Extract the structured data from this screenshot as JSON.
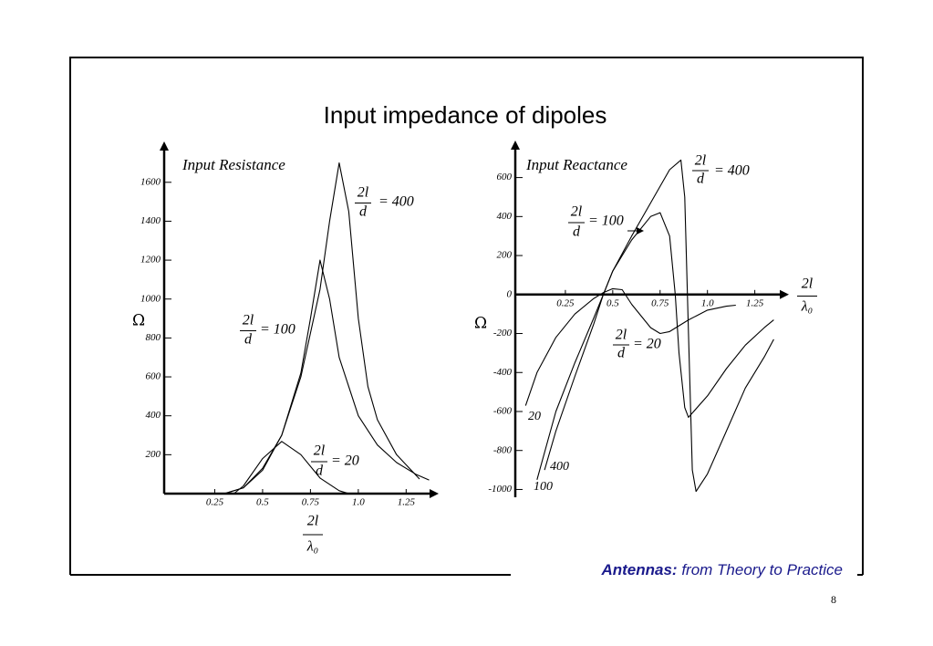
{
  "slide": {
    "title": "Input impedance of dipoles",
    "footer_bold": "Antennas:",
    "footer_italic": "from Theory to Practice",
    "page_number": "8"
  },
  "chart_data": [
    {
      "type": "line",
      "title": "Input Resistance",
      "y_label": "Ω",
      "x_label_top": "2l",
      "x_label_bottom": "λ₀",
      "ratio_top": "2l",
      "ratio_bottom": "d",
      "color": "#000000",
      "xlim": [
        0,
        1.42
      ],
      "ylim": [
        0,
        1810
      ],
      "xticks": [
        0.25,
        0.5,
        0.75,
        {
          "value": 1,
          "label": "1.0"
        },
        1.25
      ],
      "yticks": [
        200,
        400,
        600,
        800,
        1000,
        1200,
        1400,
        1600
      ],
      "series": [
        {
          "name": "= 400",
          "x": [
            0.3,
            0.4,
            0.5,
            0.6,
            0.7,
            0.8,
            0.85,
            0.9,
            0.95,
            1.0,
            1.05,
            1.1,
            1.2,
            1.32
          ],
          "values": [
            0,
            30,
            120,
            300,
            600,
            1050,
            1400,
            1700,
            1450,
            900,
            550,
            380,
            200,
            75
          ]
        },
        {
          "name": "= 100",
          "x": [
            0.3,
            0.4,
            0.5,
            0.6,
            0.7,
            0.75,
            0.8,
            0.85,
            0.9,
            1.0,
            1.1,
            1.2,
            1.3,
            1.37
          ],
          "values": [
            0,
            30,
            130,
            300,
            620,
            900,
            1200,
            1000,
            700,
            400,
            250,
            160,
            100,
            70
          ]
        },
        {
          "name": "= 20",
          "x": [
            0.35,
            0.4,
            0.5,
            0.6,
            0.7,
            0.8,
            0.9,
            0.95
          ],
          "values": [
            0,
            40,
            180,
            268,
            200,
            80,
            15,
            0
          ]
        }
      ]
    },
    {
      "type": "line",
      "title": "Input Reactance",
      "y_label": "Ω",
      "x_label_top": "2l",
      "x_label_bottom": "λ₀",
      "ratio_top": "2l",
      "ratio_bottom": "d",
      "color": "#000000",
      "xlim": [
        0,
        1.43
      ],
      "ylim": [
        -1040,
        790
      ],
      "xticks": [
        0.25,
        0.5,
        0.75,
        {
          "value": 1,
          "label": "1.0"
        },
        1.25
      ],
      "yticks": [
        -1000,
        -800,
        -600,
        -400,
        -200,
        0,
        200,
        400,
        600
      ],
      "series": [
        {
          "name": "= 400",
          "end_label": "400",
          "x": [
            0.14,
            0.2,
            0.3,
            0.4,
            0.45,
            0.5,
            0.6,
            0.7,
            0.8,
            0.86,
            0.88,
            0.9,
            0.92,
            0.94,
            1.0,
            1.1,
            1.2,
            1.3,
            1.35
          ],
          "values": [
            -900,
            -700,
            -420,
            -150,
            0,
            120,
            300,
            470,
            640,
            690,
            500,
            -200,
            -900,
            -1010,
            -920,
            -700,
            -480,
            -320,
            -230
          ]
        },
        {
          "name": "= 100",
          "end_label": "100",
          "x": [
            0.1,
            0.2,
            0.3,
            0.4,
            0.45,
            0.5,
            0.6,
            0.7,
            0.75,
            0.8,
            0.83,
            0.85,
            0.88,
            0.9,
            1.0,
            1.1,
            1.2,
            1.3,
            1.35
          ],
          "values": [
            -950,
            -600,
            -350,
            -120,
            0,
            120,
            280,
            400,
            420,
            300,
            0,
            -300,
            -580,
            -630,
            -520,
            -380,
            -260,
            -170,
            -130
          ]
        },
        {
          "name": "= 20",
          "end_label": "20",
          "x": [
            0.04,
            0.1,
            0.2,
            0.3,
            0.4,
            0.45,
            0.5,
            0.55,
            0.6,
            0.7,
            0.75,
            0.8,
            0.9,
            1.0,
            1.1,
            1.15
          ],
          "values": [
            -570,
            -400,
            -220,
            -100,
            -20,
            10,
            30,
            25,
            -50,
            -170,
            -200,
            -190,
            -130,
            -80,
            -60,
            -55
          ]
        }
      ]
    }
  ]
}
